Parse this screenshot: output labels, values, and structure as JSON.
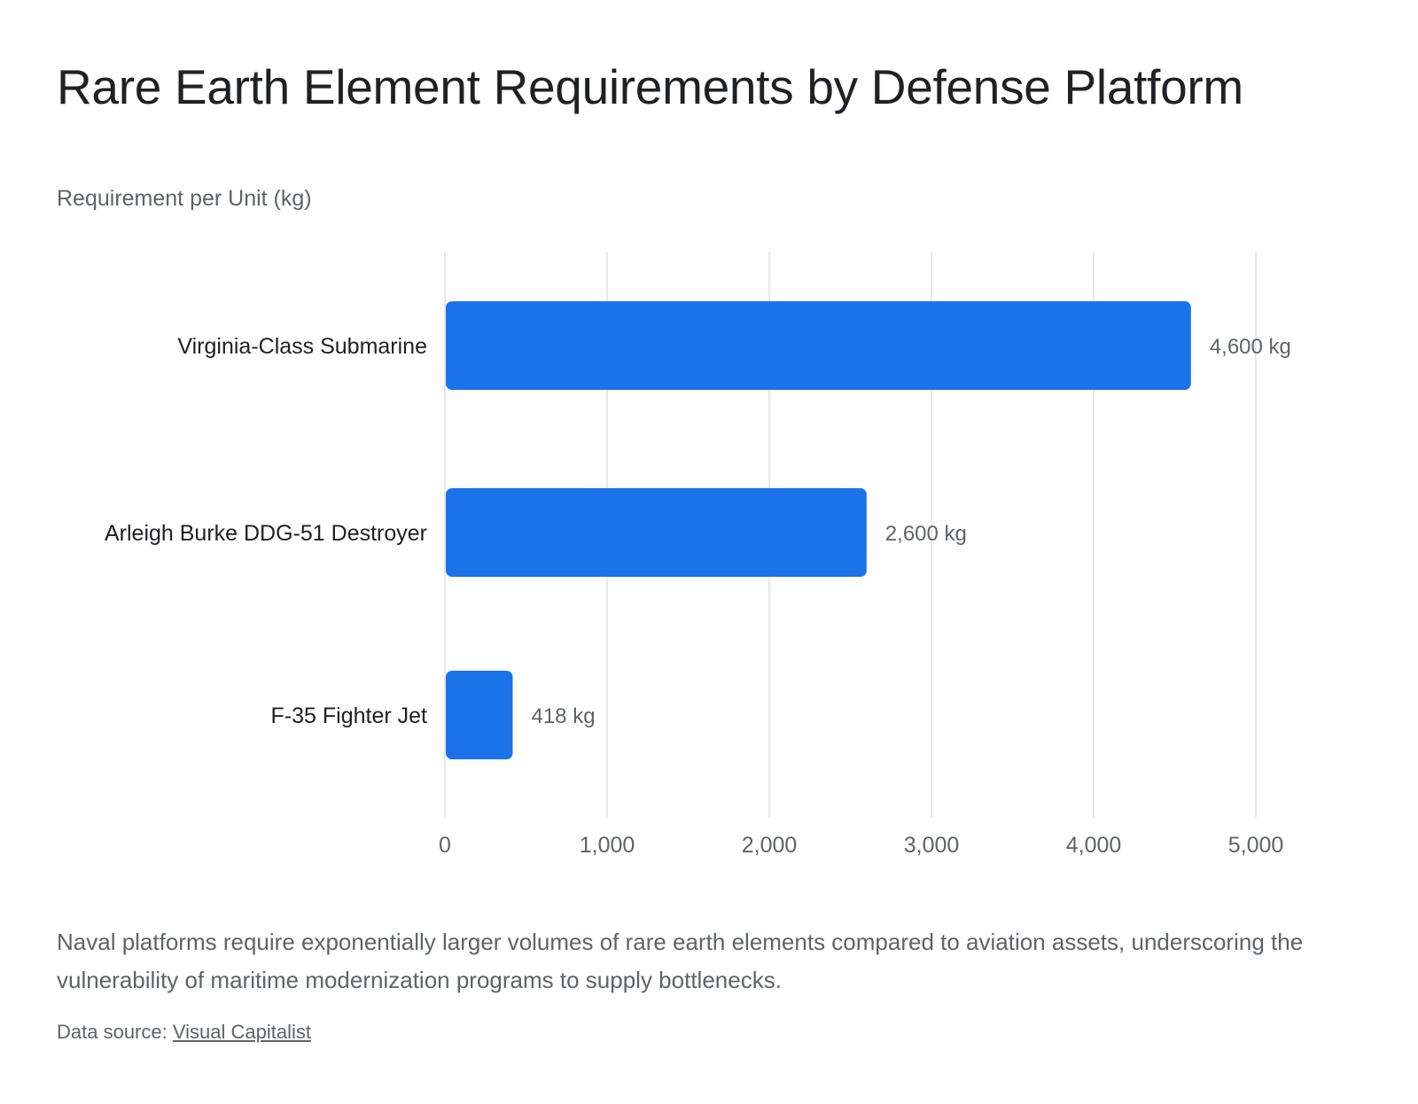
{
  "title": "Rare Earth Element Requirements by Defense Platform",
  "chart_data": {
    "type": "bar",
    "orientation": "horizontal",
    "title": "Rare Earth Element Requirements by Defense Platform",
    "ylabel": "Requirement per Unit (kg)",
    "categories": [
      "Virginia-Class Submarine",
      "Arleigh Burke DDG-51 Destroyer",
      "F-35 Fighter Jet"
    ],
    "values": [
      4600,
      2600,
      418
    ],
    "data_labels": [
      "4,600 kg",
      "2,600 kg",
      "418 kg"
    ],
    "xlim": [
      0,
      5000
    ],
    "xticks": [
      0,
      1000,
      2000,
      3000,
      4000,
      5000
    ],
    "xtick_labels": [
      "0",
      "1,000",
      "2,000",
      "3,000",
      "4,000",
      "5,000"
    ],
    "grid": "vertical",
    "bar_color": "#1a73e8"
  },
  "footnote": "Naval platforms require exponentially larger volumes of rare earth elements compared to aviation assets, underscoring the vulnerability of maritime modernization programs to supply bottlenecks.",
  "source": {
    "prefix": "Data source: ",
    "link_text": "Visual Capitalist"
  }
}
